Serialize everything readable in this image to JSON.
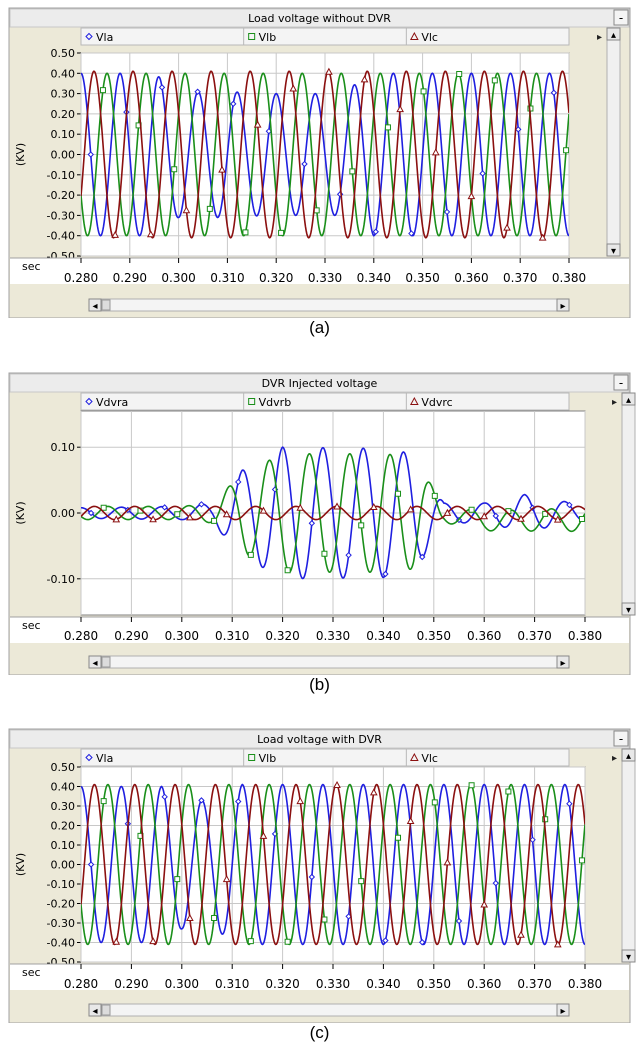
{
  "panels": [
    {
      "caption": "(a)",
      "window": {
        "minimize_glyph": "-",
        "scroll_right_glyph": "▸",
        "scroll_left_glyph": "◂",
        "step_up_glyph": "▴",
        "step_down_glyph": "▾"
      },
      "legend": [
        {
          "label": "Vla",
          "marker": "diamond",
          "color": "#1f1fe0"
        },
        {
          "label": "Vlb",
          "marker": "square",
          "color": "#1a8f1a"
        },
        {
          "label": "Vlc",
          "marker": "triangle",
          "color": "#8b1010"
        }
      ],
      "x_unit_label": "sec",
      "y_unit_label": "(KV)"
    },
    {
      "caption": "(b)",
      "window": {
        "minimize_glyph": "-",
        "scroll_right_glyph": "▸",
        "scroll_left_glyph": "◂",
        "step_up_glyph": "▴",
        "step_down_glyph": "▾"
      },
      "legend": [
        {
          "label": "Vdvra",
          "marker": "diamond",
          "color": "#1f1fe0"
        },
        {
          "label": "Vdvrb",
          "marker": "square",
          "color": "#1a8f1a"
        },
        {
          "label": "Vdvrc",
          "marker": "triangle",
          "color": "#8b1010"
        }
      ],
      "x_unit_label": "sec",
      "y_unit_label": "(KV)"
    },
    {
      "caption": "(c)",
      "window": {
        "minimize_glyph": "-",
        "scroll_right_glyph": "▸",
        "scroll_left_glyph": "◂",
        "step_up_glyph": "▴",
        "step_down_glyph": "▾"
      },
      "legend": [
        {
          "label": "Vla",
          "marker": "diamond",
          "color": "#1f1fe0"
        },
        {
          "label": "Vlb",
          "marker": "square",
          "color": "#1a8f1a"
        },
        {
          "label": "Vlc",
          "marker": "triangle",
          "color": "#8b1010"
        }
      ],
      "x_unit_label": "sec",
      "y_unit_label": "(KV)"
    }
  ],
  "chart_data": [
    {
      "type": "line",
      "title": "Load voltage without DVR",
      "xlabel": "sec",
      "ylabel": "(KV)",
      "xlim": [
        0.28,
        0.38
      ],
      "ylim": [
        -0.5,
        0.5
      ],
      "xticks": [
        "0.280",
        "0.290",
        "0.300",
        "0.310",
        "0.320",
        "0.330",
        "0.340",
        "0.350",
        "0.360",
        "0.370",
        "0.380"
      ],
      "yticks": [
        "0.50",
        "0.40",
        "0.30",
        "0.20",
        "0.10",
        "0.00",
        "-0.10",
        "-0.20",
        "-0.30",
        "-0.40",
        "-0.50"
      ],
      "grid": true,
      "legend": "top",
      "frequency_hz": 125,
      "series": [
        {
          "name": "Vla",
          "color": "#1f1fe0",
          "phase_deg": 0,
          "envelope": {
            "x": [
              0.28,
              0.295,
              0.3,
              0.31,
              0.318,
              0.326,
              0.333,
              0.34,
              0.348,
              0.38
            ],
            "amp": [
              0.4,
              0.4,
              0.31,
              0.31,
              0.3,
              0.3,
              0.3,
              0.4,
              0.4,
              0.4
            ]
          }
        },
        {
          "name": "Vlb",
          "color": "#1a8f1a",
          "phase_deg": -120,
          "envelope": {
            "x": [
              0.28,
              0.3,
              0.31,
              0.34,
              0.35,
              0.38
            ],
            "amp": [
              0.4,
              0.4,
              0.4,
              0.4,
              0.4,
              0.4
            ]
          }
        },
        {
          "name": "Vlc",
          "color": "#8b1010",
          "phase_deg": 120,
          "envelope": {
            "x": [
              0.28,
              0.38
            ],
            "amp": [
              0.41,
              0.41
            ]
          }
        }
      ]
    },
    {
      "type": "line",
      "title": "DVR Injected voltage",
      "xlabel": "sec",
      "ylabel": "(KV)",
      "xlim": [
        0.28,
        0.38
      ],
      "ylim": [
        -0.155,
        0.155
      ],
      "xticks": [
        "0.280",
        "0.290",
        "0.300",
        "0.310",
        "0.320",
        "0.330",
        "0.340",
        "0.350",
        "0.360",
        "0.370",
        "0.380"
      ],
      "yticks": [
        "0.10",
        "0.00",
        "-0.10"
      ],
      "grid": true,
      "legend": "top",
      "frequency_hz": 125,
      "series": [
        {
          "name": "Vdvra",
          "color": "#1f1fe0",
          "phase_deg": 0,
          "envelope": {
            "x": [
              0.28,
              0.3,
              0.306,
              0.312,
              0.32,
              0.34,
              0.346,
              0.352,
              0.36,
              0.368,
              0.38
            ],
            "amp": [
              0.008,
              0.01,
              0.015,
              0.065,
              0.1,
              0.098,
              0.09,
              0.015,
              0.015,
              0.028,
              0.012
            ]
          }
        },
        {
          "name": "Vdvrb",
          "color": "#1a8f1a",
          "phase_deg": -120,
          "envelope": {
            "x": [
              0.28,
              0.3,
              0.306,
              0.312,
              0.32,
              0.34,
              0.346,
              0.352,
              0.36,
              0.38
            ],
            "amp": [
              0.01,
              0.01,
              0.015,
              0.06,
              0.09,
              0.09,
              0.085,
              0.012,
              0.015,
              0.018
            ]
          },
          "offset": {
            "x": [
              0.28,
              0.35,
              0.36,
              0.38
            ],
            "dy": [
              0.0,
              0.0,
              -0.012,
              -0.01
            ]
          }
        },
        {
          "name": "Vdvrc",
          "color": "#8b1010",
          "phase_deg": 120,
          "envelope": {
            "x": [
              0.28,
              0.38
            ],
            "amp": [
              0.01,
              0.01
            ]
          }
        }
      ]
    },
    {
      "type": "line",
      "title": "Load voltage with DVR",
      "xlabel": "sec",
      "ylabel": "(KV)",
      "xlim": [
        0.28,
        0.38
      ],
      "ylim": [
        -0.5,
        0.5
      ],
      "xticks": [
        "0.280",
        "0.290",
        "0.300",
        "0.310",
        "0.320",
        "0.330",
        "0.340",
        "0.350",
        "0.360",
        "0.370",
        "0.380"
      ],
      "yticks": [
        "0.50",
        "0.40",
        "0.30",
        "0.20",
        "0.10",
        "0.00",
        "-0.10",
        "-0.20",
        "-0.30",
        "-0.40",
        "-0.50"
      ],
      "grid": true,
      "legend": "top",
      "frequency_hz": 125,
      "series": [
        {
          "name": "Vla",
          "color": "#1f1fe0",
          "phase_deg": 0,
          "envelope": {
            "x": [
              0.28,
              0.296,
              0.3,
              0.306,
              0.312,
              0.38
            ],
            "amp": [
              0.4,
              0.4,
              0.33,
              0.33,
              0.41,
              0.41
            ]
          }
        },
        {
          "name": "Vlb",
          "color": "#1a8f1a",
          "phase_deg": -120,
          "envelope": {
            "x": [
              0.28,
              0.38
            ],
            "amp": [
              0.41,
              0.41
            ]
          }
        },
        {
          "name": "Vlc",
          "color": "#8b1010",
          "phase_deg": 120,
          "envelope": {
            "x": [
              0.28,
              0.38
            ],
            "amp": [
              0.41,
              0.41
            ]
          }
        }
      ]
    }
  ]
}
